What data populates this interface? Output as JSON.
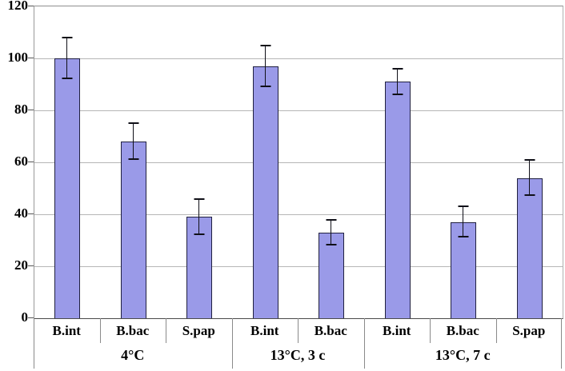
{
  "chart_data": {
    "type": "bar",
    "title": "",
    "xlabel": "",
    "ylabel": "",
    "ylim": [
      0,
      120
    ],
    "yticks": [
      0,
      20,
      40,
      60,
      80,
      100,
      120
    ],
    "grid": true,
    "legend": false,
    "error_bars": true,
    "groups": [
      {
        "label": "4°C",
        "bars": [
          {
            "category": "B.int",
            "value": 100,
            "error": 8
          },
          {
            "category": "B.bac",
            "value": 68,
            "error": 7
          },
          {
            "category": "S.pap",
            "value": 39,
            "error": 7
          }
        ]
      },
      {
        "label": "13°C, 3 c",
        "bars": [
          {
            "category": "B.int",
            "value": 97,
            "error": 8
          },
          {
            "category": "B.bac",
            "value": 33,
            "error": 5
          }
        ]
      },
      {
        "label": "13°C, 7 c",
        "bars": [
          {
            "category": "B.int",
            "value": 91,
            "error": 5
          },
          {
            "category": "B.bac",
            "value": 37,
            "error": 6
          },
          {
            "category": "S.pap",
            "value": 54,
            "error": 7
          }
        ]
      }
    ],
    "colors": {
      "bar_fill": "#9a9ae8",
      "bar_border": "#202040",
      "error_bar": "#101018",
      "gridline": "#b6b6b6",
      "text": "#000000",
      "background": "#ffffff"
    }
  }
}
